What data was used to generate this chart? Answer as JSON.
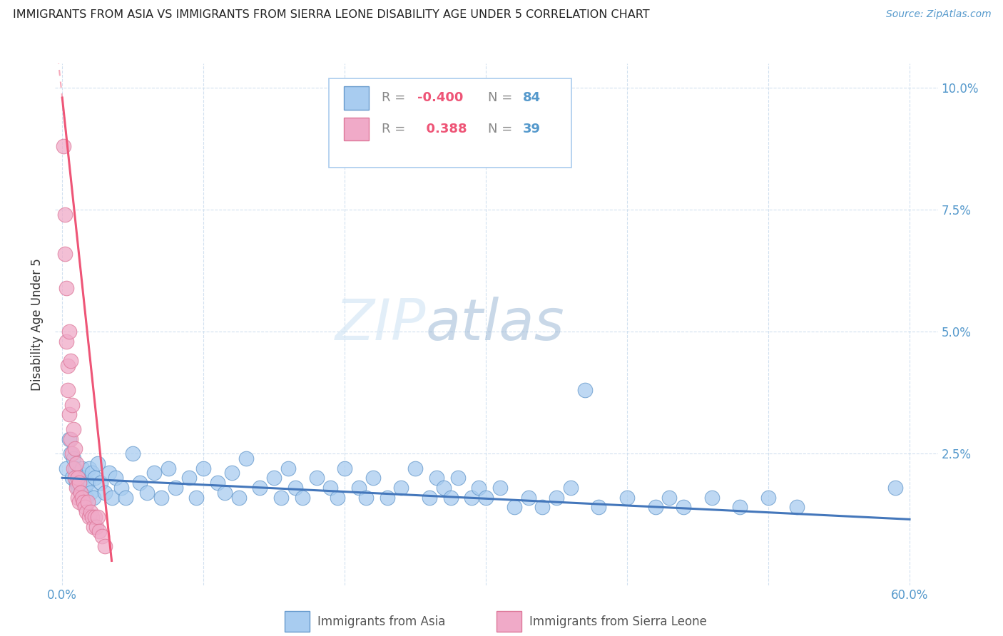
{
  "title": "IMMIGRANTS FROM ASIA VS IMMIGRANTS FROM SIERRA LEONE DISABILITY AGE UNDER 5 CORRELATION CHART",
  "source": "Source: ZipAtlas.com",
  "ylabel": "Disability Age Under 5",
  "xlim": [
    -0.005,
    0.62
  ],
  "ylim": [
    -0.002,
    0.105
  ],
  "xticks": [
    0.0,
    0.6
  ],
  "xticklabels": [
    "0.0%",
    "60.0%"
  ],
  "yticks": [
    0.025,
    0.05,
    0.075,
    0.1
  ],
  "yticklabels": [
    "2.5%",
    "5.0%",
    "7.5%",
    "10.0%"
  ],
  "color_asia": "#a8ccf0",
  "color_sierra": "#f0aac8",
  "color_asia_edge": "#6699cc",
  "color_sierra_edge": "#dd7799",
  "color_asia_line": "#4477bb",
  "color_sierra_line": "#ee5577",
  "color_axis_text": "#5599cc",
  "color_grid": "#ccddee",
  "watermark_zip": "ZIP",
  "watermark_atlas": "atlas",
  "asia_x": [
    0.003,
    0.005,
    0.006,
    0.007,
    0.008,
    0.009,
    0.01,
    0.011,
    0.012,
    0.013,
    0.014,
    0.015,
    0.016,
    0.017,
    0.018,
    0.019,
    0.02,
    0.021,
    0.022,
    0.023,
    0.025,
    0.027,
    0.03,
    0.033,
    0.035,
    0.038,
    0.042,
    0.045,
    0.05,
    0.055,
    0.06,
    0.065,
    0.07,
    0.075,
    0.08,
    0.09,
    0.095,
    0.1,
    0.11,
    0.115,
    0.12,
    0.125,
    0.13,
    0.14,
    0.15,
    0.155,
    0.16,
    0.165,
    0.17,
    0.18,
    0.19,
    0.195,
    0.2,
    0.21,
    0.215,
    0.22,
    0.23,
    0.24,
    0.25,
    0.26,
    0.265,
    0.27,
    0.275,
    0.28,
    0.29,
    0.295,
    0.3,
    0.31,
    0.32,
    0.33,
    0.34,
    0.35,
    0.36,
    0.37,
    0.38,
    0.4,
    0.42,
    0.43,
    0.44,
    0.46,
    0.48,
    0.5,
    0.52,
    0.59
  ],
  "asia_y": [
    0.022,
    0.028,
    0.025,
    0.02,
    0.024,
    0.022,
    0.019,
    0.018,
    0.021,
    0.017,
    0.022,
    0.02,
    0.018,
    0.016,
    0.019,
    0.022,
    0.017,
    0.021,
    0.016,
    0.02,
    0.023,
    0.019,
    0.017,
    0.021,
    0.016,
    0.02,
    0.018,
    0.016,
    0.025,
    0.019,
    0.017,
    0.021,
    0.016,
    0.022,
    0.018,
    0.02,
    0.016,
    0.022,
    0.019,
    0.017,
    0.021,
    0.016,
    0.024,
    0.018,
    0.02,
    0.016,
    0.022,
    0.018,
    0.016,
    0.02,
    0.018,
    0.016,
    0.022,
    0.018,
    0.016,
    0.02,
    0.016,
    0.018,
    0.022,
    0.016,
    0.02,
    0.018,
    0.016,
    0.02,
    0.016,
    0.018,
    0.016,
    0.018,
    0.014,
    0.016,
    0.014,
    0.016,
    0.018,
    0.038,
    0.014,
    0.016,
    0.014,
    0.016,
    0.014,
    0.016,
    0.014,
    0.016,
    0.014,
    0.018
  ],
  "sierra_x": [
    0.001,
    0.002,
    0.002,
    0.003,
    0.003,
    0.004,
    0.004,
    0.005,
    0.005,
    0.006,
    0.006,
    0.007,
    0.007,
    0.008,
    0.008,
    0.009,
    0.009,
    0.01,
    0.01,
    0.011,
    0.011,
    0.012,
    0.012,
    0.013,
    0.014,
    0.015,
    0.016,
    0.017,
    0.018,
    0.019,
    0.02,
    0.021,
    0.022,
    0.023,
    0.024,
    0.025,
    0.026,
    0.028,
    0.03
  ],
  "sierra_y": [
    0.088,
    0.074,
    0.066,
    0.059,
    0.048,
    0.043,
    0.038,
    0.033,
    0.05,
    0.044,
    0.028,
    0.035,
    0.025,
    0.03,
    0.022,
    0.026,
    0.02,
    0.023,
    0.018,
    0.02,
    0.016,
    0.019,
    0.015,
    0.017,
    0.016,
    0.015,
    0.014,
    0.013,
    0.015,
    0.012,
    0.013,
    0.012,
    0.01,
    0.012,
    0.01,
    0.012,
    0.009,
    0.008,
    0.006
  ],
  "asia_line_x": [
    0.0,
    0.6
  ],
  "asia_line_y": [
    0.02,
    0.0115
  ],
  "sierra_line_x": [
    0.0,
    0.035
  ],
  "sierra_line_y": [
    0.098,
    0.003
  ]
}
